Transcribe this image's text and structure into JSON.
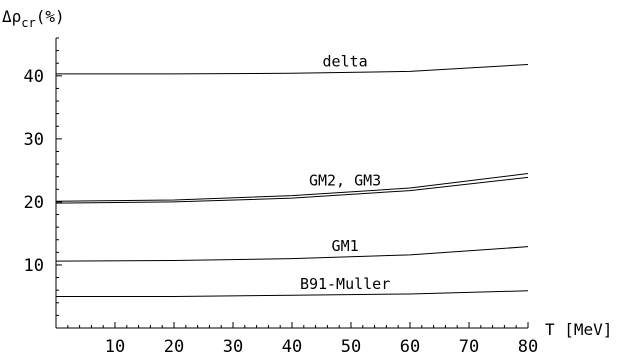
{
  "chart_data": {
    "type": "line",
    "ylabel": "Δρ_cr(%)",
    "ylabel_parts": {
      "prefix": "Δρ",
      "subscript": "cr",
      "suffix": "(%)"
    },
    "xlabel": "T  [MeV]",
    "xlim": [
      0,
      80
    ],
    "ylim": [
      0,
      46
    ],
    "x_ticks": [
      10,
      20,
      30,
      40,
      50,
      60,
      70,
      80
    ],
    "y_ticks": [
      10,
      20,
      30,
      40
    ],
    "grid": false,
    "series": [
      {
        "name": "delta",
        "x": [
          0,
          20,
          40,
          60,
          80
        ],
        "values": [
          40.3,
          40.3,
          40.4,
          40.7,
          41.8
        ]
      },
      {
        "name": "GM2",
        "x": [
          0,
          20,
          40,
          60,
          80
        ],
        "values": [
          20.1,
          20.3,
          21.0,
          22.2,
          24.5
        ]
      },
      {
        "name": "GM3",
        "x": [
          0,
          20,
          40,
          60,
          80
        ],
        "values": [
          19.8,
          20.0,
          20.6,
          21.8,
          23.9
        ]
      },
      {
        "name": "GM1",
        "x": [
          0,
          20,
          40,
          60,
          80
        ],
        "values": [
          10.6,
          10.7,
          11.0,
          11.6,
          12.9
        ]
      },
      {
        "name": "B91-Muller",
        "x": [
          0,
          20,
          40,
          60,
          80
        ],
        "values": [
          5.0,
          5.0,
          5.2,
          5.4,
          5.9
        ]
      }
    ],
    "curve_labels": [
      {
        "text": "delta",
        "x": 49,
        "y": 41.5
      },
      {
        "text": "GM2, GM3",
        "x": 49,
        "y": 22.6
      },
      {
        "text": "GM1",
        "x": 49,
        "y": 12.2
      },
      {
        "text": "B91-Muller",
        "x": 49,
        "y": 6.2
      }
    ]
  }
}
